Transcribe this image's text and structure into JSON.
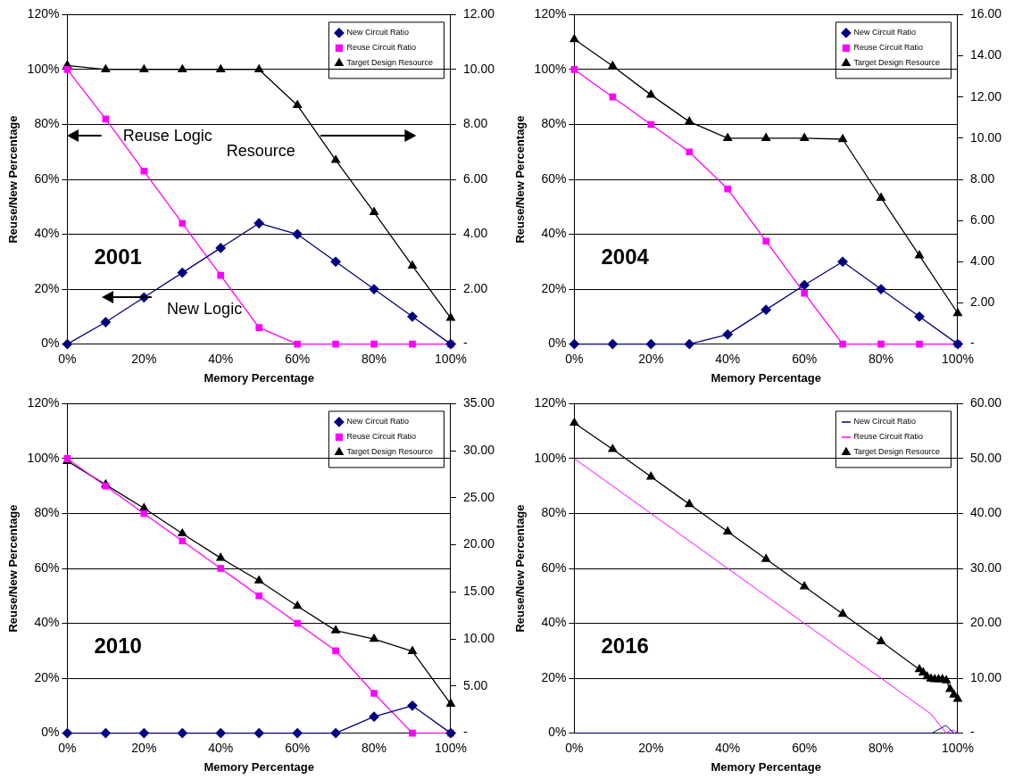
{
  "chart_data": [
    {
      "type": "line",
      "title": "2001",
      "xlabel": "Memory Percentage",
      "ylabel": "Reuse/New Percentage",
      "x": [
        0,
        10,
        20,
        30,
        40,
        50,
        60,
        70,
        80,
        90,
        100
      ],
      "series": [
        {
          "name": "New Circuit Ratio",
          "color": "#000080",
          "marker": "diamond",
          "values": [
            0,
            8,
            17,
            26,
            35,
            44,
            40,
            30,
            20,
            10,
            0
          ]
        },
        {
          "name": "Reuse Circuit Ratio",
          "color": "#ff00ff",
          "marker": "square",
          "values": [
            100,
            82,
            63,
            44,
            25,
            6,
            0,
            0,
            0,
            0,
            0
          ]
        },
        {
          "name": "Target Design Resource",
          "color": "#000000",
          "marker": "triangle",
          "axis": "y2",
          "values": [
            10.15,
            10,
            10,
            10,
            10,
            10,
            8.7,
            6.7,
            4.8,
            2.85,
            0.95
          ]
        }
      ],
      "xlim": [
        0,
        100
      ],
      "xticks": [
        {
          "value": 0,
          "label": "0%"
        },
        {
          "value": 20,
          "label": "20%"
        },
        {
          "value": 40,
          "label": "40%"
        },
        {
          "value": 60,
          "label": "60%"
        },
        {
          "value": 80,
          "label": "80%"
        },
        {
          "value": 100,
          "label": "100%"
        }
      ],
      "ylim": [
        0,
        120
      ],
      "yticks": [
        {
          "value": 0,
          "label": "0%"
        },
        {
          "value": 20,
          "label": "20%"
        },
        {
          "value": 40,
          "label": "40%"
        },
        {
          "value": 60,
          "label": "60%"
        },
        {
          "value": 80,
          "label": "80%"
        },
        {
          "value": 100,
          "label": "100%"
        },
        {
          "value": 120,
          "label": "120%"
        }
      ],
      "y2lim": [
        0,
        12
      ],
      "y2ticks": [
        {
          "value": 0,
          "label": "-"
        },
        {
          "value": 2,
          "label": "2.00"
        },
        {
          "value": 4,
          "label": "4.00"
        },
        {
          "value": 6,
          "label": "6.00"
        },
        {
          "value": 8,
          "label": "8.00"
        },
        {
          "value": 10,
          "label": "10.00"
        },
        {
          "value": 12,
          "label": "12.00"
        }
      ],
      "annotations": [
        "Reuse Logic",
        "Resource",
        "New Logic"
      ],
      "grid": "y",
      "legend": "top right"
    },
    {
      "type": "line",
      "title": "2004",
      "xlabel": "Memory Percentage",
      "ylabel": "Reuse/New Percentage",
      "x": [
        0,
        10,
        20,
        30,
        40,
        50,
        60,
        70,
        80,
        90,
        100
      ],
      "series": [
        {
          "name": "New Circuit Ratio",
          "color": "#000080",
          "marker": "diamond",
          "values": [
            0,
            0,
            0,
            0,
            3.5,
            12.5,
            21.5,
            30,
            20,
            10,
            0
          ]
        },
        {
          "name": "Reuse Circuit Ratio",
          "color": "#ff00ff",
          "marker": "square",
          "values": [
            100,
            90,
            80,
            70,
            56.5,
            37.5,
            18.5,
            0,
            0,
            0,
            0
          ]
        },
        {
          "name": "Target Design Resource",
          "color": "#000000",
          "marker": "triangle",
          "axis": "y2",
          "values": [
            14.8,
            13.5,
            12.1,
            10.8,
            10,
            10,
            10,
            9.95,
            7.1,
            4.3,
            1.5
          ]
        }
      ],
      "xlim": [
        0,
        100
      ],
      "xticks": [
        {
          "value": 0,
          "label": "0%"
        },
        {
          "value": 20,
          "label": "20%"
        },
        {
          "value": 40,
          "label": "40%"
        },
        {
          "value": 60,
          "label": "60%"
        },
        {
          "value": 80,
          "label": "80%"
        },
        {
          "value": 100,
          "label": "100%"
        }
      ],
      "ylim": [
        0,
        120
      ],
      "yticks": [
        {
          "value": 0,
          "label": "0%"
        },
        {
          "value": 20,
          "label": "20%"
        },
        {
          "value": 40,
          "label": "40%"
        },
        {
          "value": 60,
          "label": "60%"
        },
        {
          "value": 80,
          "label": "80%"
        },
        {
          "value": 100,
          "label": "100%"
        },
        {
          "value": 120,
          "label": "120%"
        }
      ],
      "y2lim": [
        0,
        16
      ],
      "y2ticks": [
        {
          "value": 0,
          "label": "-"
        },
        {
          "value": 2,
          "label": "2.00"
        },
        {
          "value": 4,
          "label": "4.00"
        },
        {
          "value": 6,
          "label": "6.00"
        },
        {
          "value": 8,
          "label": "8.00"
        },
        {
          "value": 10,
          "label": "10.00"
        },
        {
          "value": 12,
          "label": "12.00"
        },
        {
          "value": 14,
          "label": "14.00"
        },
        {
          "value": 16,
          "label": "16.00"
        }
      ],
      "grid": "y",
      "legend": "top right"
    },
    {
      "type": "line",
      "title": "2010",
      "xlabel": "Memory Percentage",
      "ylabel": "Reuse/New Percentage",
      "x": [
        0,
        10,
        20,
        30,
        40,
        50,
        60,
        70,
        80,
        90,
        100
      ],
      "series": [
        {
          "name": "New Circuit Ratio",
          "color": "#000080",
          "marker": "diamond",
          "values": [
            0,
            0,
            0,
            0,
            0,
            0,
            0,
            0,
            6,
            10,
            0
          ]
        },
        {
          "name": "Reuse Circuit Ratio",
          "color": "#ff00ff",
          "marker": "square",
          "values": [
            100,
            90,
            80,
            70,
            60,
            50,
            40,
            30,
            14.5,
            0,
            0
          ]
        },
        {
          "name": "Target Design Resource",
          "color": "#000000",
          "marker": "triangle",
          "axis": "y2",
          "values": [
            28.9,
            26.4,
            23.9,
            21.2,
            18.6,
            16.2,
            13.5,
            10.9,
            10,
            8.7,
            3.1
          ]
        }
      ],
      "xlim": [
        0,
        100
      ],
      "xticks": [
        {
          "value": 0,
          "label": "0%"
        },
        {
          "value": 20,
          "label": "20%"
        },
        {
          "value": 40,
          "label": "40%"
        },
        {
          "value": 60,
          "label": "60%"
        },
        {
          "value": 80,
          "label": "80%"
        },
        {
          "value": 100,
          "label": "100%"
        }
      ],
      "ylim": [
        0,
        120
      ],
      "yticks": [
        {
          "value": 0,
          "label": "0%"
        },
        {
          "value": 20,
          "label": "20%"
        },
        {
          "value": 40,
          "label": "40%"
        },
        {
          "value": 60,
          "label": "60%"
        },
        {
          "value": 80,
          "label": "80%"
        },
        {
          "value": 100,
          "label": "100%"
        },
        {
          "value": 120,
          "label": "120%"
        }
      ],
      "y2lim": [
        0,
        35
      ],
      "y2ticks": [
        {
          "value": 0,
          "label": "-"
        },
        {
          "value": 5,
          "label": "5.00"
        },
        {
          "value": 10,
          "label": "10.00"
        },
        {
          "value": 15,
          "label": "15.00"
        },
        {
          "value": 20,
          "label": "20.00"
        },
        {
          "value": 25,
          "label": "25.00"
        },
        {
          "value": 30,
          "label": "30.00"
        },
        {
          "value": 35,
          "label": "35.00"
        }
      ],
      "grid": "y",
      "legend": "top right"
    },
    {
      "type": "line",
      "title": "2016",
      "xlabel": "Memory Percentage",
      "ylabel": "Reuse/New Percentage",
      "series": [
        {
          "name": "New Circuit Ratio",
          "color": "#000080",
          "marker": "none",
          "x": [
            0,
            93.3,
            96.9,
            99,
            100
          ],
          "values": [
            0,
            0,
            2.8,
            0,
            0
          ]
        },
        {
          "name": "Reuse Circuit Ratio",
          "color": "#ff00ff",
          "marker": "none",
          "x": [
            0,
            92,
            93,
            97,
            98,
            99,
            100
          ],
          "values": [
            100,
            8,
            7,
            0,
            1,
            1,
            0
          ]
        },
        {
          "name": "Target Design Resource",
          "color": "#000000",
          "marker": "triangle",
          "axis": "y2",
          "x": [
            0,
            10,
            20,
            30,
            40,
            50,
            60,
            70,
            80,
            90,
            91,
            92,
            93,
            94,
            95,
            96,
            97,
            98,
            99,
            100
          ],
          "values": [
            56.5,
            51.7,
            46.7,
            41.7,
            36.7,
            31.7,
            26.7,
            21.7,
            16.7,
            11.6,
            11,
            10.3,
            9.9,
            9.8,
            9.8,
            9.8,
            9.6,
            8,
            7,
            6.2
          ]
        }
      ],
      "xlim": [
        0,
        100
      ],
      "xticks": [
        {
          "value": 0,
          "label": "0%"
        },
        {
          "value": 20,
          "label": "20%"
        },
        {
          "value": 40,
          "label": "40%"
        },
        {
          "value": 60,
          "label": "60%"
        },
        {
          "value": 80,
          "label": "80%"
        },
        {
          "value": 100,
          "label": "100%"
        }
      ],
      "ylim": [
        0,
        120
      ],
      "yticks": [
        {
          "value": 0,
          "label": "0%"
        },
        {
          "value": 20,
          "label": "20%"
        },
        {
          "value": 40,
          "label": "40%"
        },
        {
          "value": 60,
          "label": "60%"
        },
        {
          "value": 80,
          "label": "80%"
        },
        {
          "value": 100,
          "label": "100%"
        },
        {
          "value": 120,
          "label": "120%"
        }
      ],
      "y2lim": [
        0,
        60
      ],
      "y2ticks": [
        {
          "value": 0,
          "label": "-"
        },
        {
          "value": 10,
          "label": "10.00"
        },
        {
          "value": 20,
          "label": "20.00"
        },
        {
          "value": 30,
          "label": "30.00"
        },
        {
          "value": 40,
          "label": "40.00"
        },
        {
          "value": 50,
          "label": "50.00"
        },
        {
          "value": 60,
          "label": "60.00"
        }
      ],
      "grid": "y",
      "legend": "top right"
    }
  ]
}
